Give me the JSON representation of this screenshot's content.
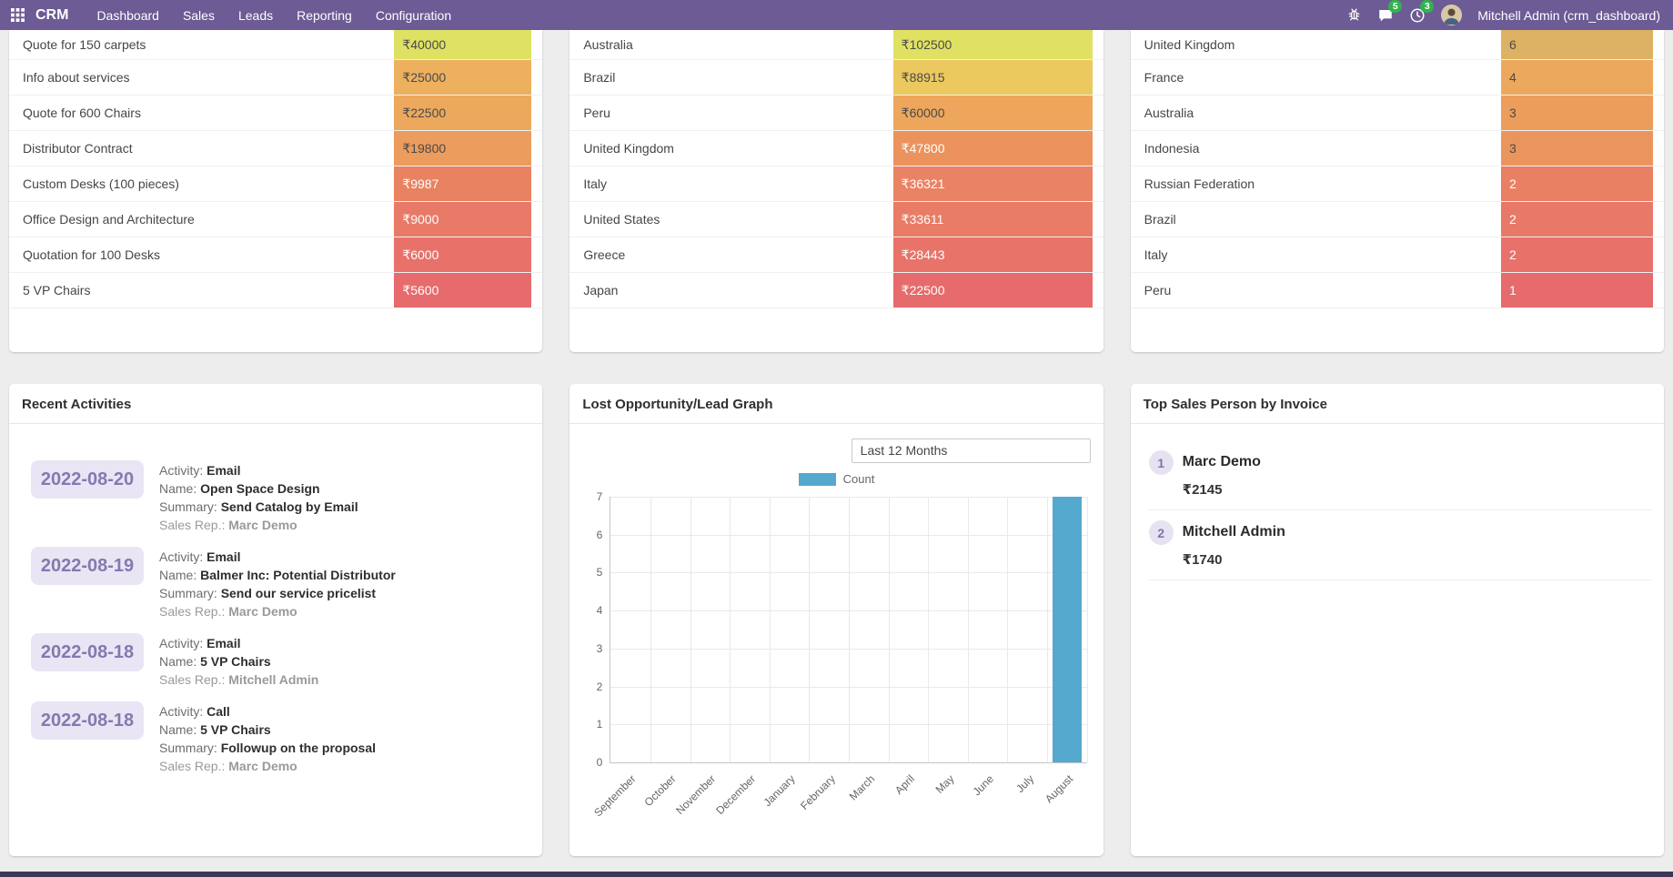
{
  "navbar": {
    "app": "CRM",
    "menus": [
      "Dashboard",
      "Sales",
      "Leads",
      "Reporting",
      "Configuration"
    ],
    "messages_badge": "5",
    "activities_badge": "3",
    "user": "Mitchell Admin (crm_dashboard)"
  },
  "colors": {
    "navbar_bg": "#6c5b94",
    "footer_bar": "#3e3755",
    "badge": "#31b34c",
    "accent_purple": "#8579af",
    "bar": "#55a9ce"
  },
  "top_tables": [
    {
      "name": "expected-revenue-by-deal",
      "rows": [
        {
          "label": "Quote for 150 carpets",
          "value": "₹40000",
          "bg": "#dfe163",
          "fg": "#4a4a4a"
        },
        {
          "label": "Info about services",
          "value": "₹25000",
          "bg": "#edb05f",
          "fg": "#4a4a4a"
        },
        {
          "label": "Quote for 600 Chairs",
          "value": "₹22500",
          "bg": "#eca85d",
          "fg": "#4a4a4a"
        },
        {
          "label": "Distributor Contract",
          "value": "₹19800",
          "bg": "#ec9c5c",
          "fg": "#4a4a4a"
        },
        {
          "label": "Custom Desks (100 pieces)",
          "value": "₹9987",
          "bg": "#e98261",
          "fg": "#fefefe"
        },
        {
          "label": "Office Design and Architecture",
          "value": "₹9000",
          "bg": "#e87a67",
          "fg": "#fefefe"
        },
        {
          "label": "Quotation for 100 Desks",
          "value": "₹6000",
          "bg": "#e8726a",
          "fg": "#fefefe"
        },
        {
          "label": "5 VP Chairs",
          "value": "₹5600",
          "bg": "#e76b6c",
          "fg": "#fefefe"
        }
      ]
    },
    {
      "name": "revenue-by-country",
      "rows": [
        {
          "label": "Australia",
          "value": "₹102500",
          "bg": "#e0e163",
          "fg": "#4a4a4a"
        },
        {
          "label": "Brazil",
          "value": "₹88915",
          "bg": "#ecc95f",
          "fg": "#4a4a4a"
        },
        {
          "label": "Peru",
          "value": "₹60000",
          "bg": "#eda65c",
          "fg": "#4a4a4a"
        },
        {
          "label": "United Kingdom",
          "value": "₹47800",
          "bg": "#ec935d",
          "fg": "#fefefe"
        },
        {
          "label": "Italy",
          "value": "₹36321",
          "bg": "#ea8363",
          "fg": "#fefefe"
        },
        {
          "label": "United States",
          "value": "₹33611",
          "bg": "#e97c66",
          "fg": "#fefefe"
        },
        {
          "label": "Greece",
          "value": "₹28443",
          "bg": "#e87469",
          "fg": "#fefefe"
        },
        {
          "label": "Japan",
          "value": "₹22500",
          "bg": "#e76b6c",
          "fg": "#fefefe"
        }
      ]
    },
    {
      "name": "lead-count-by-country",
      "rows": [
        {
          "label": "United Kingdom",
          "value": "6",
          "bg": "#deb264",
          "fg": "#4a4a4a"
        },
        {
          "label": "France",
          "value": "4",
          "bg": "#eca85c",
          "fg": "#4a4a4a"
        },
        {
          "label": "Australia",
          "value": "3",
          "bg": "#ec9d5c",
          "fg": "#4a4a4a"
        },
        {
          "label": "Indonesia",
          "value": "3",
          "bg": "#eb955e",
          "fg": "#4a4a4a"
        },
        {
          "label": "Russian Federation",
          "value": "2",
          "bg": "#e97f63",
          "fg": "#fefefe"
        },
        {
          "label": "Brazil",
          "value": "2",
          "bg": "#e87867",
          "fg": "#fefefe"
        },
        {
          "label": "Italy",
          "value": "2",
          "bg": "#e87169",
          "fg": "#fefefe"
        },
        {
          "label": "Peru",
          "value": "1",
          "bg": "#e76b6c",
          "fg": "#fefefe"
        }
      ]
    }
  ],
  "recent_activities": {
    "title": "Recent Activities",
    "labels": {
      "activity": "Activity:",
      "name": "Name:",
      "summary": "Summary:",
      "rep": "Sales Rep.:"
    },
    "items": [
      {
        "date": "2022-08-20",
        "activity": "Email",
        "name": "Open Space Design",
        "summary": "Send Catalog by Email",
        "rep": "Marc Demo"
      },
      {
        "date": "2022-08-19",
        "activity": "Email",
        "name": "Balmer Inc: Potential Distributor",
        "summary": "Send our service pricelist",
        "rep": "Marc Demo"
      },
      {
        "date": "2022-08-18",
        "activity": "Email",
        "name": "5 VP Chairs",
        "summary": null,
        "rep": "Mitchell Admin"
      },
      {
        "date": "2022-08-18",
        "activity": "Call",
        "name": "5 VP Chairs",
        "summary": "Followup on the proposal",
        "rep": "Marc Demo"
      }
    ]
  },
  "chart_card": {
    "title": "Lost Opportunity/Lead Graph",
    "filter": "Last 12 Months"
  },
  "chart_data": {
    "type": "bar",
    "title": "Lost Opportunity/Lead Graph",
    "categories": [
      "September",
      "October",
      "November",
      "December",
      "January",
      "February",
      "March",
      "April",
      "May",
      "June",
      "July",
      "August"
    ],
    "series": [
      {
        "name": "Count",
        "color": "#55a9ce",
        "values": [
          0,
          0,
          0,
          0,
          0,
          0,
          0,
          0,
          0,
          0,
          0,
          7
        ]
      }
    ],
    "xlabel": "",
    "ylabel": "",
    "ylim": [
      0,
      7
    ],
    "yticks": [
      0,
      1,
      2,
      3,
      4,
      5,
      6,
      7
    ],
    "grid": true,
    "legend_position": "top"
  },
  "top_sales": {
    "title": "Top Sales Person by Invoice",
    "items": [
      {
        "rank": "1",
        "name": "Marc Demo",
        "amount": "₹2145"
      },
      {
        "rank": "2",
        "name": "Mitchell Admin",
        "amount": "₹1740"
      }
    ]
  }
}
